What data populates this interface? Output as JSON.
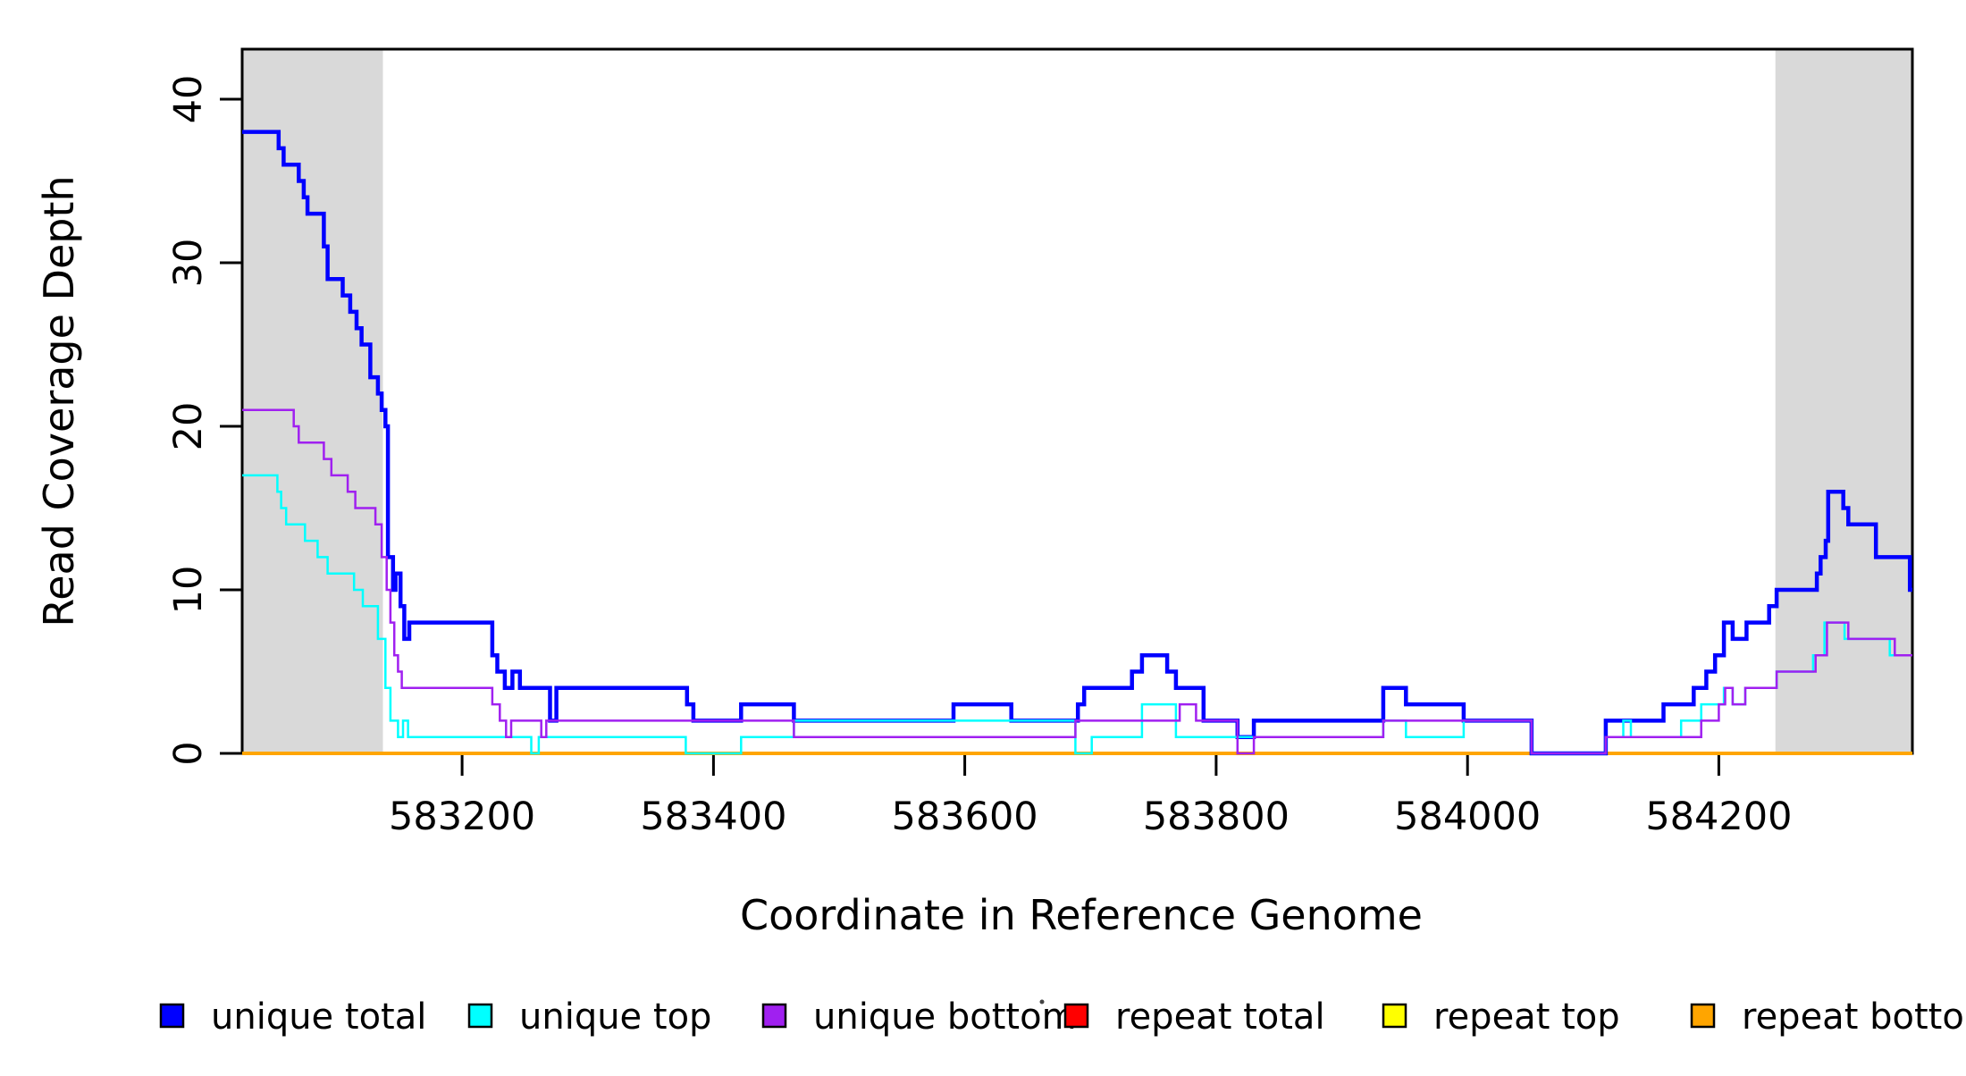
{
  "chart_data": {
    "type": "line",
    "subtype": "step-coverage-plot",
    "title": "",
    "xlabel": "Coordinate in Reference Genome",
    "ylabel": "Read Coverage Depth",
    "x_range": [
      583025,
      584354
    ],
    "y_range": [
      0,
      43
    ],
    "grid": false,
    "x_ticks": [
      {
        "value": 583200,
        "label": "583200"
      },
      {
        "value": 583400,
        "label": "583400"
      },
      {
        "value": 583600,
        "label": "583600"
      },
      {
        "value": 583800,
        "label": "583800"
      },
      {
        "value": 584000,
        "label": "584000"
      },
      {
        "value": 584200,
        "label": "584200"
      }
    ],
    "y_ticks": [
      {
        "value": 0,
        "label": "0"
      },
      {
        "value": 10,
        "label": "10"
      },
      {
        "value": 20,
        "label": "20"
      },
      {
        "value": 30,
        "label": "30"
      },
      {
        "value": 40,
        "label": "40"
      }
    ],
    "shaded_regions": [
      {
        "from": 583025,
        "to": 583137,
        "color": "#D9D9D9"
      },
      {
        "from": 584245,
        "to": 584354,
        "color": "#D9D9D9"
      }
    ],
    "legend_position": "bottom",
    "legend": [
      {
        "label": "unique total",
        "color": "#0000FF"
      },
      {
        "label": "unique top",
        "color": "#00FFFF"
      },
      {
        "label": "unique bottom",
        "color": "#A020F0"
      },
      {
        "label": "repeat total",
        "color": "#FF0000"
      },
      {
        "label": "repeat top",
        "color": "#FFFF00"
      },
      {
        "label": "repeat bottom",
        "color": "#FFA500"
      }
    ],
    "series": [
      {
        "name": "repeat total",
        "color": "#FF0000",
        "width": 2.5,
        "points": [
          [
            583025,
            0
          ],
          [
            584354,
            0
          ]
        ]
      },
      {
        "name": "repeat top",
        "color": "#FFFF00",
        "width": 2.5,
        "points": [
          [
            583025,
            0
          ],
          [
            584354,
            0
          ]
        ]
      },
      {
        "name": "repeat bottom",
        "color": "#FFA500",
        "width": 4,
        "points": [
          [
            583025,
            0
          ],
          [
            584354,
            0
          ]
        ]
      },
      {
        "name": "unique total",
        "color": "#0000FF",
        "width": 4.5,
        "points": [
          [
            583025,
            38
          ],
          [
            583054,
            37
          ],
          [
            583058,
            36
          ],
          [
            583070,
            35
          ],
          [
            583074,
            34
          ],
          [
            583077,
            33
          ],
          [
            583090,
            31
          ],
          [
            583093,
            29
          ],
          [
            583105,
            28
          ],
          [
            583111,
            27
          ],
          [
            583116,
            26
          ],
          [
            583120,
            25
          ],
          [
            583127,
            23
          ],
          [
            583133,
            22
          ],
          [
            583136,
            21
          ],
          [
            583139,
            20
          ],
          [
            583141,
            12
          ],
          [
            583145,
            10
          ],
          [
            583147,
            11
          ],
          [
            583151,
            9
          ],
          [
            583154,
            7
          ],
          [
            583158,
            8
          ],
          [
            583224,
            6
          ],
          [
            583228,
            5
          ],
          [
            583234,
            4
          ],
          [
            583240,
            5
          ],
          [
            583246,
            4
          ],
          [
            583270,
            2
          ],
          [
            583275,
            4
          ],
          [
            583379,
            3
          ],
          [
            583384,
            2
          ],
          [
            583422,
            3
          ],
          [
            583464,
            2
          ],
          [
            583591,
            3
          ],
          [
            583637,
            2
          ],
          [
            583690,
            3
          ],
          [
            583695,
            4
          ],
          [
            583733,
            5
          ],
          [
            583741,
            6
          ],
          [
            583761,
            5
          ],
          [
            583768,
            4
          ],
          [
            583790,
            2
          ],
          [
            583817,
            1
          ],
          [
            583830,
            2
          ],
          [
            583933,
            4
          ],
          [
            583951,
            3
          ],
          [
            583997,
            2
          ],
          [
            584051,
            0
          ],
          [
            584110,
            2
          ],
          [
            584156,
            3
          ],
          [
            584180,
            4
          ],
          [
            584190,
            5
          ],
          [
            584197,
            6
          ],
          [
            584204,
            8
          ],
          [
            584211,
            7
          ],
          [
            584222,
            8
          ],
          [
            584240,
            9
          ],
          [
            584246,
            10
          ],
          [
            584278,
            11
          ],
          [
            584281,
            12
          ],
          [
            584285,
            13
          ],
          [
            584287,
            16
          ],
          [
            584299,
            15
          ],
          [
            584303,
            14
          ],
          [
            584325,
            12
          ],
          [
            584352,
            10
          ],
          [
            584354,
            10
          ]
        ]
      },
      {
        "name": "unique top",
        "color": "#00FFFF",
        "width": 2.5,
        "points": [
          [
            583025,
            17
          ],
          [
            583053,
            16
          ],
          [
            583056,
            15
          ],
          [
            583060,
            14
          ],
          [
            583075,
            13
          ],
          [
            583085,
            12
          ],
          [
            583093,
            11
          ],
          [
            583114,
            10
          ],
          [
            583121,
            9
          ],
          [
            583133,
            7
          ],
          [
            583139,
            4
          ],
          [
            583143,
            2
          ],
          [
            583149,
            1
          ],
          [
            583153,
            2
          ],
          [
            583157,
            1
          ],
          [
            583255,
            0
          ],
          [
            583261,
            1
          ],
          [
            583378,
            0
          ],
          [
            583422,
            1
          ],
          [
            583464,
            2
          ],
          [
            583688,
            0
          ],
          [
            583701,
            1
          ],
          [
            583741,
            3
          ],
          [
            583768,
            1
          ],
          [
            583933,
            2
          ],
          [
            583951,
            1
          ],
          [
            583997,
            2
          ],
          [
            584051,
            0
          ],
          [
            584110,
            1
          ],
          [
            584124,
            2
          ],
          [
            584130,
            1
          ],
          [
            584170,
            2
          ],
          [
            584186,
            3
          ],
          [
            584204,
            4
          ],
          [
            584211,
            3
          ],
          [
            584221,
            4
          ],
          [
            584246,
            5
          ],
          [
            584275,
            6
          ],
          [
            584284,
            8
          ],
          [
            584300,
            7
          ],
          [
            584336,
            6
          ],
          [
            584354,
            6
          ]
        ]
      },
      {
        "name": "unique bottom",
        "color": "#A020F0",
        "width": 2.5,
        "points": [
          [
            583025,
            21
          ],
          [
            583066,
            20
          ],
          [
            583070,
            19
          ],
          [
            583090,
            18
          ],
          [
            583096,
            17
          ],
          [
            583109,
            16
          ],
          [
            583115,
            15
          ],
          [
            583131,
            14
          ],
          [
            583136,
            12
          ],
          [
            583140,
            10
          ],
          [
            583143,
            8
          ],
          [
            583146,
            6
          ],
          [
            583149,
            5
          ],
          [
            583152,
            4
          ],
          [
            583224,
            3
          ],
          [
            583230,
            2
          ],
          [
            583235,
            1
          ],
          [
            583239,
            2
          ],
          [
            583263,
            1
          ],
          [
            583267,
            2
          ],
          [
            583464,
            1
          ],
          [
            583688,
            2
          ],
          [
            583771,
            3
          ],
          [
            583784,
            2
          ],
          [
            583817,
            0
          ],
          [
            583830,
            1
          ],
          [
            583933,
            2
          ],
          [
            584051,
            0
          ],
          [
            584110,
            1
          ],
          [
            584186,
            2
          ],
          [
            584200,
            3
          ],
          [
            584205,
            4
          ],
          [
            584211,
            3
          ],
          [
            584221,
            4
          ],
          [
            584246,
            5
          ],
          [
            584277,
            6
          ],
          [
            584286,
            8
          ],
          [
            584303,
            7
          ],
          [
            584340,
            6
          ],
          [
            584354,
            6
          ]
        ]
      }
    ]
  }
}
